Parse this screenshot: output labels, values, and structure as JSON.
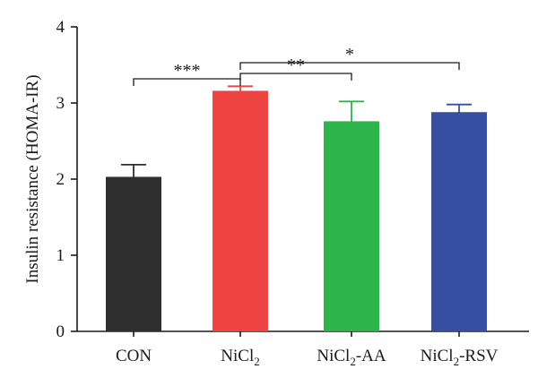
{
  "chart_data": {
    "type": "bar",
    "ylabel": "Insulin resistance (HOMA-IR)",
    "xlabel": "",
    "ylim": [
      0,
      4
    ],
    "yticks": [
      0,
      1,
      2,
      3,
      4
    ],
    "categories": [
      {
        "base": "CON",
        "sub": "",
        "suffix": ""
      },
      {
        "base": "NiCl",
        "sub": "2",
        "suffix": ""
      },
      {
        "base": "NiCl",
        "sub": "2",
        "suffix": "-AA"
      },
      {
        "base": "NiCl",
        "sub": "2",
        "suffix": "-RSV"
      }
    ],
    "values": [
      2.03,
      3.16,
      2.76,
      2.88
    ],
    "errors": [
      0.16,
      0.06,
      0.26,
      0.1
    ],
    "colors": [
      "#2e2e2e",
      "#ee4444",
      "#2db54b",
      "#3550a3"
    ],
    "significance": [
      {
        "from": 0,
        "to": 1,
        "label": "***"
      },
      {
        "from": 1,
        "to": 2,
        "label": "**"
      },
      {
        "from": 1,
        "to": 3,
        "label": "*"
      }
    ]
  }
}
